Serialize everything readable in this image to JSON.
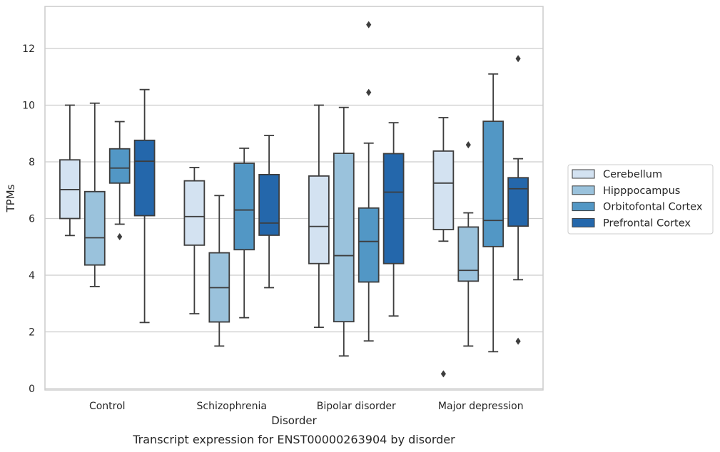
{
  "chart_data": {
    "type": "box",
    "xlabel": "Disorder",
    "ylabel": "TPMs",
    "caption": "Transcript expression for ENST00000263904 by disorder",
    "ylim": [
      -0.1,
      13.5
    ],
    "yticks": [
      0,
      2,
      4,
      6,
      8,
      10,
      12
    ],
    "categories": [
      "Control",
      "Schizophrenia",
      "Bipolar disorder",
      "Major depression"
    ],
    "grid": true,
    "legend_position": "right-center",
    "series": [
      {
        "name": "Cerebellum",
        "color": "#d3e2f1",
        "boxes": [
          {
            "whisker_low": 5.4,
            "q1": 6.0,
            "median": 7.02,
            "q3": 8.07,
            "whisker_high": 10.0,
            "outliers": []
          },
          {
            "whisker_low": 2.64,
            "q1": 5.06,
            "median": 6.07,
            "q3": 7.33,
            "whisker_high": 7.8,
            "outliers": []
          },
          {
            "whisker_low": 2.16,
            "q1": 4.41,
            "median": 5.72,
            "q3": 7.5,
            "whisker_high": 10.0,
            "outliers": []
          },
          {
            "whisker_low": 5.2,
            "q1": 5.61,
            "median": 7.25,
            "q3": 8.38,
            "whisker_high": 9.56,
            "outliers": [
              0.52
            ]
          }
        ]
      },
      {
        "name": "Hipppocampus",
        "color": "#9ac2dc",
        "boxes": [
          {
            "whisker_low": 3.6,
            "q1": 4.36,
            "median": 5.32,
            "q3": 6.95,
            "whisker_high": 10.07,
            "outliers": []
          },
          {
            "whisker_low": 1.5,
            "q1": 2.35,
            "median": 3.56,
            "q3": 4.79,
            "whisker_high": 6.81,
            "outliers": []
          },
          {
            "whisker_low": 1.15,
            "q1": 2.36,
            "median": 4.69,
            "q3": 8.3,
            "whisker_high": 9.92,
            "outliers": []
          },
          {
            "whisker_low": 1.5,
            "q1": 3.79,
            "median": 4.17,
            "q3": 5.7,
            "whisker_high": 6.2,
            "outliers": [
              8.6
            ]
          }
        ]
      },
      {
        "name": "Orbitofontal Cortex",
        "color": "#5297c5",
        "boxes": [
          {
            "whisker_low": 5.8,
            "q1": 7.25,
            "median": 7.78,
            "q3": 8.46,
            "whisker_high": 9.42,
            "outliers": [
              5.36
            ]
          },
          {
            "whisker_low": 2.5,
            "q1": 4.9,
            "median": 6.3,
            "q3": 7.95,
            "whisker_high": 8.48,
            "outliers": []
          },
          {
            "whisker_low": 1.68,
            "q1": 3.76,
            "median": 5.19,
            "q3": 6.37,
            "whisker_high": 8.66,
            "outliers": [
              10.45,
              12.84
            ]
          },
          {
            "whisker_low": 1.3,
            "q1": 5.01,
            "median": 5.93,
            "q3": 9.43,
            "whisker_high": 11.1,
            "outliers": []
          }
        ]
      },
      {
        "name": "Prefrontal Cortex",
        "color": "#2467ab",
        "boxes": [
          {
            "whisker_low": 2.33,
            "q1": 6.1,
            "median": 8.02,
            "q3": 8.76,
            "whisker_high": 10.55,
            "outliers": []
          },
          {
            "whisker_low": 3.56,
            "q1": 5.41,
            "median": 5.84,
            "q3": 7.55,
            "whisker_high": 8.93,
            "outliers": []
          },
          {
            "whisker_low": 2.56,
            "q1": 4.41,
            "median": 6.93,
            "q3": 8.29,
            "whisker_high": 9.38,
            "outliers": []
          },
          {
            "whisker_low": 3.84,
            "q1": 5.73,
            "median": 7.05,
            "q3": 7.44,
            "whisker_high": 8.11,
            "outliers": [
              1.67,
              11.64
            ]
          }
        ]
      }
    ]
  }
}
